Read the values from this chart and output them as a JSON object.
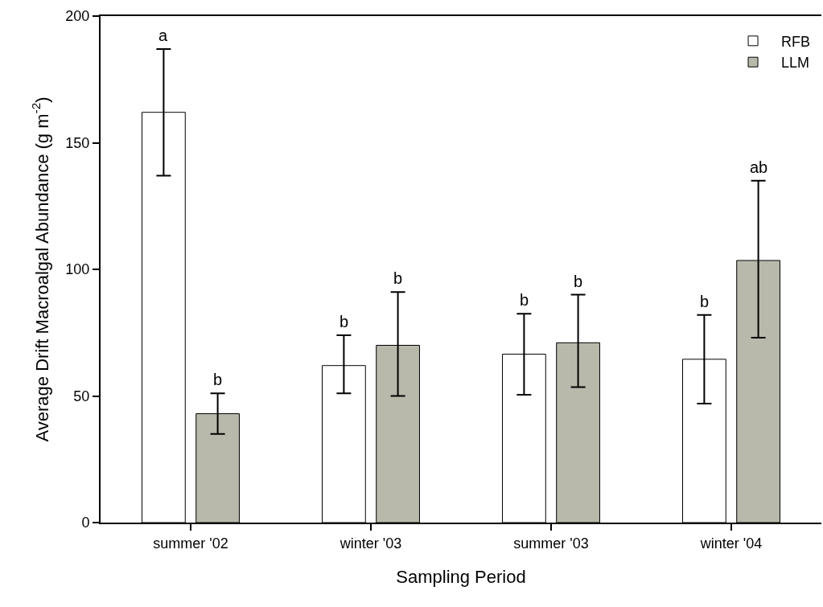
{
  "chart_data": {
    "type": "bar",
    "xlabel": "Sampling Period",
    "ylabel": "Average Drift Macroalgal Abundance (g m$^{-2}$)",
    "categories": [
      "summer '02",
      "winter '03",
      "summer '03",
      "winter '04"
    ],
    "series": [
      {
        "name": "RFB",
        "color": "#ffffff",
        "values": [
          162,
          62,
          66.5,
          64.5
        ],
        "errors": [
          [
            137,
            187
          ],
          [
            51,
            74
          ],
          [
            50.5,
            82.5
          ],
          [
            47,
            82
          ]
        ]
      },
      {
        "name": "LLM",
        "color": "#b8b8ab",
        "values": [
          43,
          70,
          71,
          103.5
        ],
        "errors": [
          [
            35,
            51
          ],
          [
            50,
            91
          ],
          [
            53.5,
            90
          ],
          [
            73,
            135
          ]
        ]
      }
    ],
    "annotations": [
      "a",
      "b",
      "b",
      "b",
      "b",
      "b",
      "b",
      "ab"
    ],
    "ylim": [
      0,
      200
    ],
    "yticks": [
      0,
      50,
      100,
      150,
      200
    ],
    "grid": false,
    "legend": "top right"
  }
}
